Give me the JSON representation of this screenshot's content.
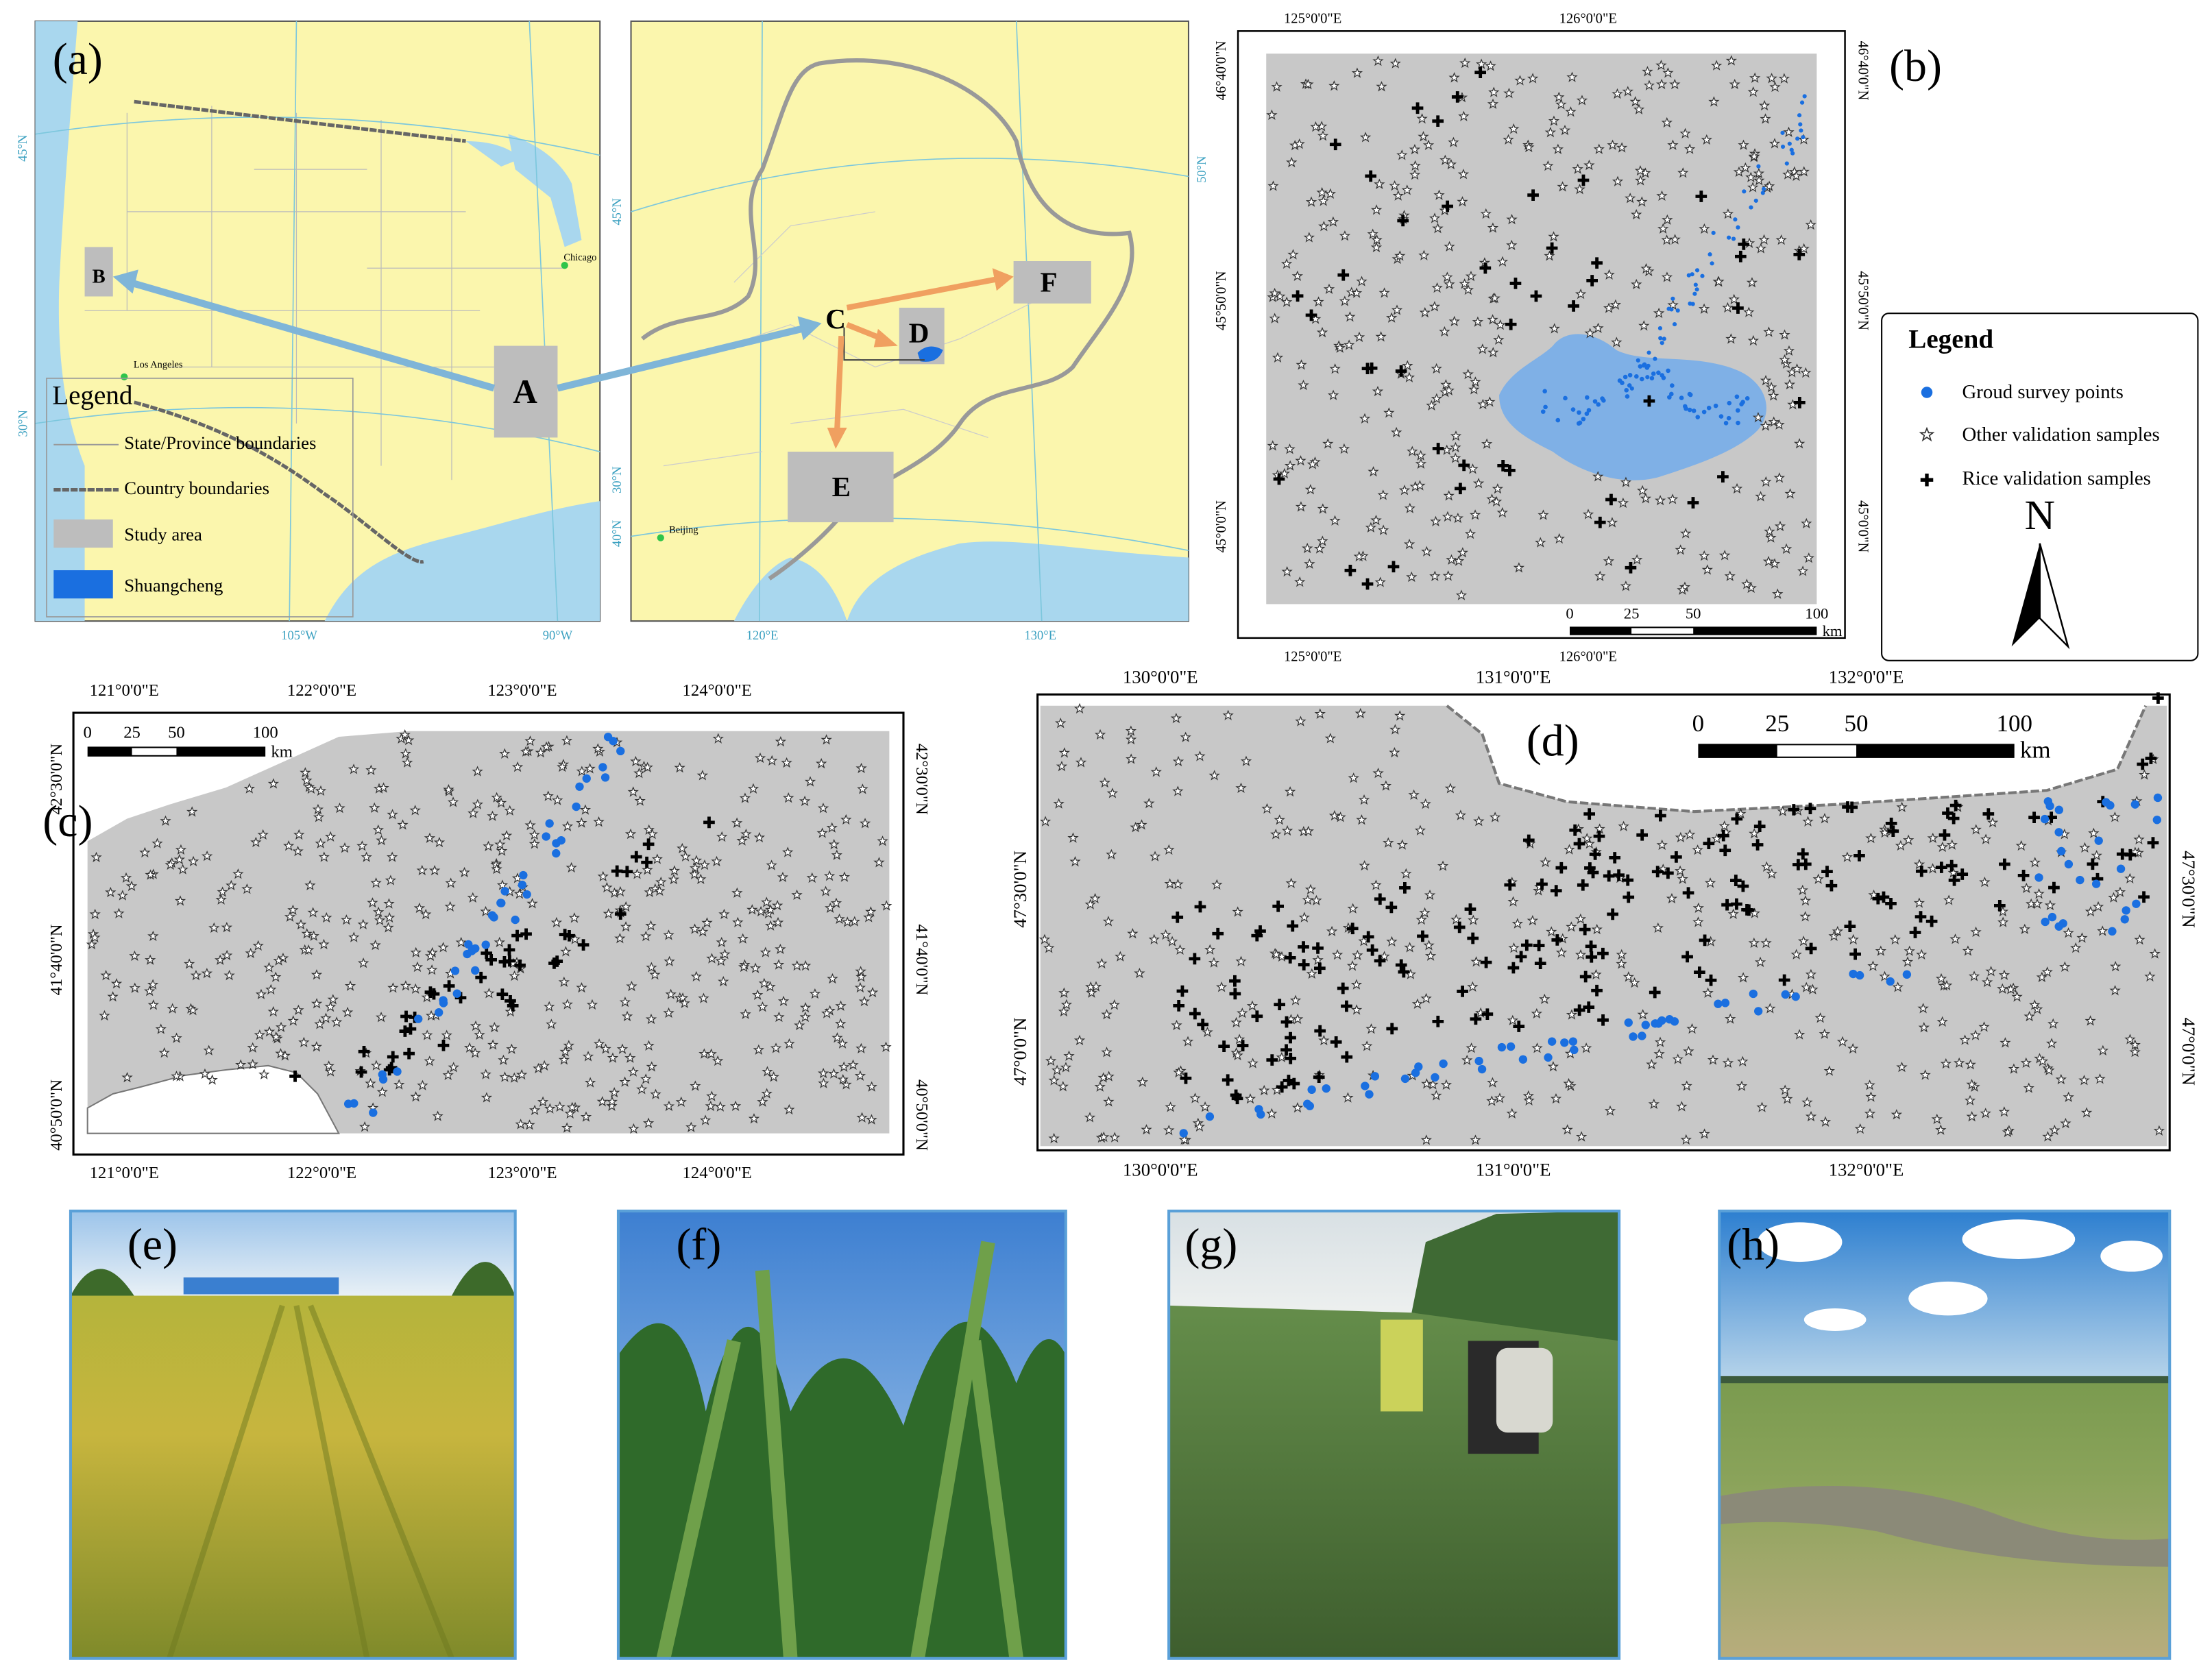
{
  "panel_a": {
    "label": "(a)",
    "usa": {
      "lat": [
        "45°N",
        "30°N"
      ],
      "lon": [
        "105°W",
        "90°W"
      ],
      "cities": [
        "Chicago",
        "Los Angeles"
      ],
      "areas": [
        "B",
        "A"
      ]
    },
    "china": {
      "lat_left": [
        "45°N",
        "30°N",
        "40°N"
      ],
      "lat_right": [
        "50°N"
      ],
      "lon": [
        "120°E",
        "130°E"
      ],
      "cities": [
        "Beijing"
      ],
      "areas": [
        "C",
        "D",
        "E",
        "F"
      ]
    },
    "legend": {
      "title": "Legend",
      "items": [
        "State/Province boundaries",
        "Country boundaries",
        "Study area",
        "Shuangcheng"
      ]
    }
  },
  "panel_b": {
    "label": "(b)",
    "lon": [
      "125°0'0\"E",
      "126°0'0\"E"
    ],
    "lat": [
      "46°40'0\"N",
      "45°50'0\"N",
      "45°0'0\"N"
    ],
    "scale": {
      "ticks": [
        0,
        25,
        50,
        100
      ],
      "unit": "km"
    }
  },
  "legend": {
    "title": "Legend",
    "items": [
      "Groud survey points",
      "Other validation samples",
      "Rice validation samples"
    ],
    "north": "N"
  },
  "panel_c": {
    "label": "(c)",
    "lon": [
      "121°0'0\"E",
      "122°0'0\"E",
      "123°0'0\"E",
      "124°0'0\"E"
    ],
    "lat": [
      "42°30'0\"N",
      "41°40'0\"N",
      "40°50'0\"N"
    ],
    "scale": {
      "ticks": [
        0,
        25,
        50,
        100
      ],
      "unit": "km"
    }
  },
  "panel_d": {
    "label": "(d)",
    "lon": [
      "130°0'0\"E",
      "131°0'0\"E",
      "132°0'0\"E"
    ],
    "lat": [
      "47°30'0\"N",
      "47°0'0\"N"
    ],
    "scale": {
      "ticks": [
        0,
        25,
        50,
        100
      ],
      "unit": "km"
    }
  },
  "photos": [
    "(e)",
    "(f)",
    "(g)",
    "(h)"
  ]
}
